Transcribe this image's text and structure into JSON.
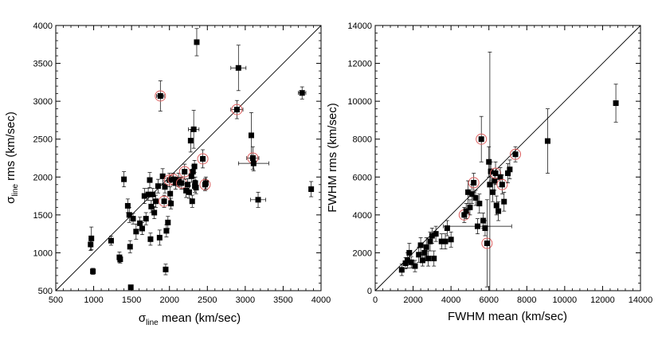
{
  "chart_data": [
    {
      "type": "scatter",
      "xlabel_main": "σ",
      "xlabel_sub": "line",
      "xlabel_rest": " mean (km/sec)",
      "ylabel_main": "σ",
      "ylabel_sub": "line",
      "ylabel_rest": " rms (km/sec)",
      "xlim": [
        500,
        4000
      ],
      "ylim": [
        500,
        4000
      ],
      "xticks": [
        500,
        1000,
        1500,
        2000,
        2500,
        3000,
        3500,
        4000
      ],
      "yticks": [
        500,
        1000,
        1500,
        2000,
        2500,
        3000,
        3500,
        4000
      ],
      "xtick_labels": [
        "500",
        "1000",
        "1500",
        "2000",
        "2500",
        "3000",
        "3500",
        "4000"
      ],
      "ytick_labels": [
        "500",
        "1000",
        "1500",
        "2000",
        "2500",
        "3000",
        "3500",
        "4000"
      ],
      "reference_line": "y = x",
      "points": [
        {
          "x": 960,
          "y": 1110,
          "ey": 80
        },
        {
          "x": 970,
          "y": 1190,
          "ey": 150
        },
        {
          "x": 990,
          "y": 755,
          "ey": 40
        },
        {
          "x": 1230,
          "y": 1160,
          "ey": 60
        },
        {
          "x": 1340,
          "y": 940,
          "ey": 70
        },
        {
          "x": 1350,
          "y": 915,
          "ey": 50
        },
        {
          "x": 1400,
          "y": 1970,
          "ey": 100
        },
        {
          "x": 1450,
          "y": 1620,
          "ey": 90
        },
        {
          "x": 1470,
          "y": 1500,
          "ey": 100
        },
        {
          "x": 1480,
          "y": 1080,
          "ey": 80
        },
        {
          "x": 1490,
          "y": 545,
          "ey": 30
        },
        {
          "x": 1520,
          "y": 1450,
          "ey": 70
        },
        {
          "x": 1560,
          "y": 1280,
          "ey": 100
        },
        {
          "x": 1610,
          "y": 1390,
          "ey": 80
        },
        {
          "x": 1640,
          "y": 1320,
          "ey": 80
        },
        {
          "x": 1670,
          "y": 1750,
          "ey": 100
        },
        {
          "x": 1690,
          "y": 1450,
          "ey": 80
        },
        {
          "x": 1720,
          "y": 1770,
          "ey": 80
        },
        {
          "x": 1740,
          "y": 1960,
          "ey": 100
        },
        {
          "x": 1750,
          "y": 1180,
          "ey": 80
        },
        {
          "x": 1760,
          "y": 1610,
          "ey": 80
        },
        {
          "x": 1780,
          "y": 1770,
          "ey": 80
        },
        {
          "x": 1800,
          "y": 1530,
          "ey": 80
        },
        {
          "x": 1820,
          "y": 1680,
          "ey": 80
        },
        {
          "x": 1850,
          "y": 1880,
          "ey": 90
        },
        {
          "x": 1870,
          "y": 1200,
          "ey": 100
        },
        {
          "x": 1880,
          "y": 3070,
          "ey": 200,
          "ex": 50,
          "circled": true
        },
        {
          "x": 1910,
          "y": 2010,
          "ey": 100
        },
        {
          "x": 1930,
          "y": 1680,
          "ey": 80,
          "circled": true
        },
        {
          "x": 1940,
          "y": 1870,
          "ey": 80
        },
        {
          "x": 1950,
          "y": 780,
          "ey": 70
        },
        {
          "x": 1960,
          "y": 1290,
          "ey": 80
        },
        {
          "x": 1980,
          "y": 1400,
          "ey": 80
        },
        {
          "x": 2000,
          "y": 1960,
          "ey": 90,
          "circled": true
        },
        {
          "x": 2010,
          "y": 1780,
          "ey": 90
        },
        {
          "x": 2020,
          "y": 1650,
          "ey": 70
        },
        {
          "x": 2050,
          "y": 1970,
          "ey": 80,
          "circled": true
        },
        {
          "x": 2080,
          "y": 1920,
          "ey": 80
        },
        {
          "x": 2120,
          "y": 1960,
          "ey": 90
        },
        {
          "x": 2160,
          "y": 1920,
          "ey": 80,
          "circled": true
        },
        {
          "x": 2200,
          "y": 2070,
          "ey": 100,
          "circled": true
        },
        {
          "x": 2220,
          "y": 1820,
          "ey": 90
        },
        {
          "x": 2240,
          "y": 1900,
          "ey": 80
        },
        {
          "x": 2260,
          "y": 1800,
          "ey": 80
        },
        {
          "x": 2280,
          "y": 2480,
          "ey": 150
        },
        {
          "x": 2290,
          "y": 2010,
          "ey": 80
        },
        {
          "x": 2300,
          "y": 1680,
          "ey": 80
        },
        {
          "x": 2310,
          "y": 2070,
          "ey": 80
        },
        {
          "x": 2320,
          "y": 2630,
          "ey": 250,
          "ex": 70
        },
        {
          "x": 2330,
          "y": 2140,
          "ey": 80
        },
        {
          "x": 2335,
          "y": 1880,
          "ey": 80
        },
        {
          "x": 2340,
          "y": 1920,
          "ey": 80
        },
        {
          "x": 2350,
          "y": 1860,
          "ey": 80
        },
        {
          "x": 2360,
          "y": 3780,
          "ey": 180
        },
        {
          "x": 2440,
          "y": 2240,
          "ey": 120,
          "circled": true
        },
        {
          "x": 2470,
          "y": 1900,
          "ey": 80,
          "circled": true
        },
        {
          "x": 2480,
          "y": 1920,
          "ey": 80
        },
        {
          "x": 2890,
          "y": 2890,
          "ey": 120,
          "ex": 80,
          "circled": true
        },
        {
          "x": 2910,
          "y": 3440,
          "ey": 300,
          "ex": 100
        },
        {
          "x": 3080,
          "y": 2550,
          "ey": 300
        },
        {
          "x": 3100,
          "y": 2250,
          "ey": 150,
          "ex": 80,
          "circled": true
        },
        {
          "x": 3110,
          "y": 2180,
          "ey": 100,
          "ex": 200
        },
        {
          "x": 3170,
          "y": 1700,
          "ey": 100,
          "ex": 100
        },
        {
          "x": 3750,
          "y": 3110,
          "ey": 80,
          "ex": 50
        },
        {
          "x": 3870,
          "y": 1840,
          "ey": 100
        }
      ]
    },
    {
      "type": "scatter",
      "xlabel": "FWHM mean (km/sec)",
      "ylabel": "FWHM rms (km/sec)",
      "xlim": [
        0,
        14000
      ],
      "ylim": [
        0,
        14000
      ],
      "xticks": [
        0,
        2000,
        4000,
        6000,
        8000,
        10000,
        12000,
        14000
      ],
      "yticks": [
        0,
        2000,
        4000,
        6000,
        8000,
        10000,
        12000,
        14000
      ],
      "xtick_labels": [
        "0",
        "2000",
        "4000",
        "6000",
        "8000",
        "10000",
        "12000",
        "14000"
      ],
      "ytick_labels": [
        "0",
        "2000",
        "4000",
        "6000",
        "8000",
        "10000",
        "12000",
        "14000"
      ],
      "reference_line": "y = x",
      "points": [
        {
          "x": 1400,
          "y": 1100,
          "ey": 300
        },
        {
          "x": 1600,
          "y": 1450,
          "ey": 300
        },
        {
          "x": 1700,
          "y": 1600,
          "ey": 400
        },
        {
          "x": 1800,
          "y": 2000,
          "ey": 500
        },
        {
          "x": 1900,
          "y": 1500,
          "ey": 300
        },
        {
          "x": 2100,
          "y": 1300,
          "ey": 300
        },
        {
          "x": 2300,
          "y": 1900,
          "ey": 400
        },
        {
          "x": 2400,
          "y": 2400,
          "ey": 400
        },
        {
          "x": 2500,
          "y": 1600,
          "ey": 300
        },
        {
          "x": 2600,
          "y": 2000,
          "ey": 400
        },
        {
          "x": 2700,
          "y": 2300,
          "ey": 500
        },
        {
          "x": 2800,
          "y": 1700,
          "ey": 400
        },
        {
          "x": 2900,
          "y": 2600,
          "ey": 500
        },
        {
          "x": 3000,
          "y": 2900,
          "ey": 400
        },
        {
          "x": 3100,
          "y": 1700,
          "ey": 400
        },
        {
          "x": 3200,
          "y": 3000,
          "ey": 400
        },
        {
          "x": 3500,
          "y": 2600,
          "ey": 400
        },
        {
          "x": 3700,
          "y": 2600,
          "ey": 400
        },
        {
          "x": 3800,
          "y": 3300,
          "ey": 400
        },
        {
          "x": 4000,
          "y": 2700,
          "ey": 400
        },
        {
          "x": 4700,
          "y": 4000,
          "ey": 400,
          "circled": true
        },
        {
          "x": 4800,
          "y": 4200,
          "ey": 400
        },
        {
          "x": 4900,
          "y": 5200,
          "ey": 600
        },
        {
          "x": 5000,
          "y": 4400,
          "ey": 400
        },
        {
          "x": 5100,
          "y": 5100,
          "ey": 500
        },
        {
          "x": 5200,
          "y": 5700,
          "ey": 500,
          "circled": true
        },
        {
          "x": 5300,
          "y": 4900,
          "ey": 400
        },
        {
          "x": 5400,
          "y": 3400,
          "ey": 400,
          "ex": 1800
        },
        {
          "x": 5500,
          "y": 4600,
          "ey": 500
        },
        {
          "x": 5600,
          "y": 8000,
          "ey": 1200,
          "circled": true
        },
        {
          "x": 5700,
          "y": 3700,
          "ey": 400
        },
        {
          "x": 5800,
          "y": 3300,
          "ey": 400
        },
        {
          "x": 5900,
          "y": 2500,
          "ey": 2300,
          "circled": true
        },
        {
          "x": 6000,
          "y": 6800,
          "ey": 800
        },
        {
          "x": 6050,
          "y": 5600,
          "ey": 7000
        },
        {
          "x": 6100,
          "y": 6300,
          "ey": 500
        },
        {
          "x": 6200,
          "y": 5200,
          "ey": 500
        },
        {
          "x": 6300,
          "y": 5800,
          "ey": 500
        },
        {
          "x": 6350,
          "y": 6200,
          "ey": 600,
          "circled": true
        },
        {
          "x": 6400,
          "y": 4500,
          "ey": 500
        },
        {
          "x": 6500,
          "y": 4200,
          "ey": 500
        },
        {
          "x": 6600,
          "y": 6000,
          "ey": 500
        },
        {
          "x": 6700,
          "y": 5600,
          "ey": 500,
          "circled": true
        },
        {
          "x": 6800,
          "y": 4700,
          "ey": 500
        },
        {
          "x": 7000,
          "y": 6200,
          "ey": 500
        },
        {
          "x": 7100,
          "y": 6400,
          "ey": 500
        },
        {
          "x": 7400,
          "y": 7200,
          "ey": 400,
          "circled": true
        },
        {
          "x": 9100,
          "y": 7900,
          "ey": 1700
        },
        {
          "x": 12700,
          "y": 9900,
          "ey": 1000
        }
      ]
    }
  ]
}
